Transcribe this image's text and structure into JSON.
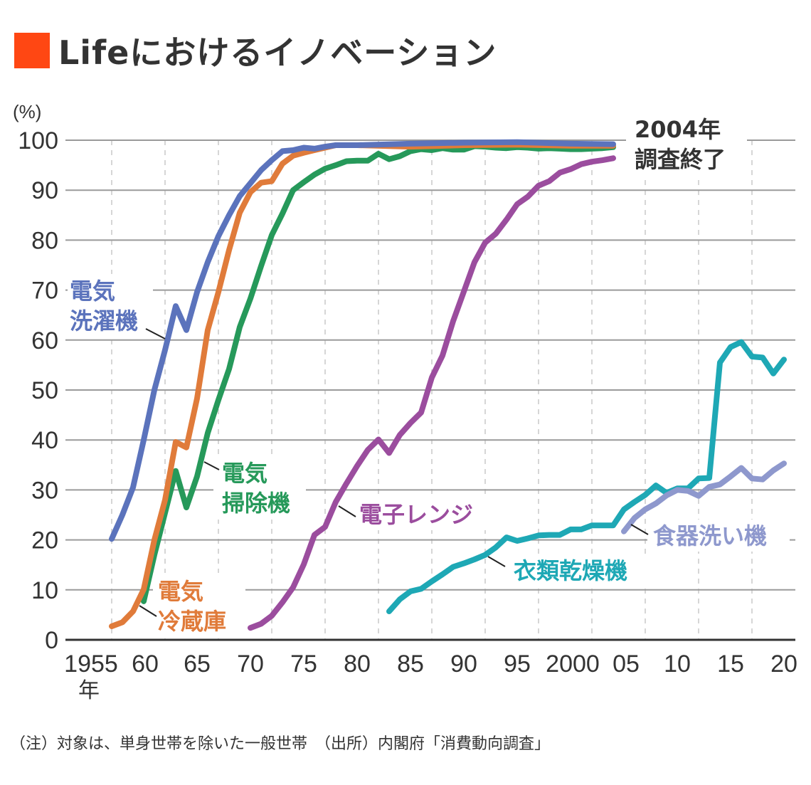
{
  "title": {
    "text": "Lifeにおけるイノベーション",
    "accent_color": "#FF4713"
  },
  "footnote": "（注）対象は、単身世帯を除いた一般世帯　（出所）内閣府「消費動向調査」",
  "chart_data": {
    "type": "line",
    "title": "Lifeにおけるイノベーション",
    "xlabel": "年",
    "ylabel": "(%)",
    "ylim": [
      0,
      100
    ],
    "xlim": [
      1955,
      2020
    ],
    "grid": true,
    "x_ticks": [
      1955,
      1960,
      1965,
      1970,
      1975,
      1980,
      1985,
      1990,
      1995,
      2000,
      2005,
      2010,
      2015,
      2020
    ],
    "x_tick_labels": [
      "1955",
      "60",
      "65",
      "70",
      "75",
      "80",
      "85",
      "90",
      "95",
      "2000",
      "05",
      "10",
      "15",
      "20"
    ],
    "x_unit_label": "年",
    "y_ticks": [
      0,
      10,
      20,
      30,
      40,
      50,
      60,
      70,
      80,
      90,
      100
    ],
    "y_tick_labels": [
      "0",
      "10",
      "20",
      "30",
      "40",
      "50",
      "60",
      "70",
      "80",
      "90",
      "100"
    ],
    "annotation": [
      "2004年",
      "調査終了"
    ],
    "series": [
      {
        "name": "電気洗濯機",
        "label_lines": [
          "電気",
          "洗濯機"
        ],
        "color": "#5B73BC",
        "x": [
          1957,
          1958,
          1959,
          1960,
          1961,
          1962,
          1963,
          1964,
          1965,
          1966,
          1967,
          1968,
          1969,
          1970,
          1971,
          1972,
          1973,
          1974,
          1975,
          1976,
          1977,
          1978,
          1980,
          1985,
          1990,
          1995,
          2000,
          2004
        ],
        "values": [
          20.2,
          25,
          30.5,
          40,
          50,
          58,
          66.8,
          62,
          69.6,
          75.6,
          80.8,
          85,
          88.8,
          91.4,
          94,
          96,
          97.8,
          98,
          98.5,
          98.3,
          98.7,
          99,
          99,
          99.3,
          99.5,
          99.6,
          99.3,
          99.2
        ]
      },
      {
        "name": "電気冷蔵庫",
        "label_lines": [
          "電気",
          "冷蔵庫"
        ],
        "color": "#E07B3A",
        "x": [
          1957,
          1958,
          1959,
          1960,
          1961,
          1962,
          1963,
          1964,
          1965,
          1966,
          1967,
          1968,
          1969,
          1970,
          1971,
          1972,
          1973,
          1974,
          1975,
          1976,
          1977,
          1978,
          1980,
          1985,
          1990,
          1995,
          2000,
          2004
        ],
        "values": [
          2.7,
          3.5,
          5.7,
          10.1,
          20,
          28,
          39.6,
          38.5,
          48.3,
          62,
          69.6,
          78,
          85.5,
          89.6,
          91.5,
          91.8,
          95.3,
          96.9,
          97.5,
          98,
          98.5,
          99,
          99,
          98.7,
          99,
          99.1,
          98.9,
          98.9
        ]
      },
      {
        "name": "電気掃除機",
        "label_lines": [
          "電気",
          "掃除機"
        ],
        "color": "#26995A",
        "x": [
          1960,
          1961,
          1962,
          1963,
          1964,
          1965,
          1966,
          1967,
          1968,
          1969,
          1970,
          1971,
          1972,
          1973,
          1974,
          1975,
          1976,
          1977,
          1978,
          1979,
          1980,
          1981,
          1982,
          1983,
          1984,
          1985,
          1986,
          1987,
          1988,
          1989,
          1990,
          1991,
          1992,
          1993,
          1994,
          1995,
          1996,
          1997,
          1998,
          1999,
          2000,
          2001,
          2002,
          2003,
          2004
        ],
        "values": [
          7.7,
          17,
          25.4,
          33.8,
          26.5,
          32.7,
          41.4,
          48,
          54.2,
          62.6,
          68.3,
          74.8,
          81,
          85.3,
          90,
          91.6,
          93.1,
          94.3,
          95,
          95.8,
          95.9,
          95.9,
          97.3,
          96.2,
          96.8,
          97.8,
          98.2,
          98,
          98.4,
          98.1,
          98.1,
          98.8,
          98.7,
          98.5,
          98.4,
          98.6,
          98.5,
          98.3,
          98.4,
          98.3,
          98.2,
          98.2,
          98.3,
          98.4,
          98.6
        ]
      },
      {
        "name": "電子レンジ",
        "label_lines": [
          "電子レンジ"
        ],
        "color": "#9B4D9E",
        "x": [
          1970,
          1971,
          1972,
          1973,
          1974,
          1975,
          1976,
          1977,
          1978,
          1979,
          1980,
          1981,
          1982,
          1983,
          1984,
          1985,
          1986,
          1987,
          1988,
          1989,
          1990,
          1991,
          1992,
          1993,
          1994,
          1995,
          1996,
          1997,
          1998,
          1999,
          2000,
          2001,
          2002,
          2003,
          2004
        ],
        "values": [
          2.4,
          3.2,
          4.8,
          7.5,
          10.5,
          15.1,
          21,
          22.6,
          27.6,
          31.3,
          34.8,
          38,
          40.1,
          37.4,
          41,
          43.4,
          45.5,
          52.5,
          56.9,
          63.8,
          69.7,
          75.6,
          79.5,
          81.3,
          84.1,
          87.2,
          88.7,
          90.9,
          91.8,
          93.5,
          94.2,
          95.2,
          95.7,
          96,
          96.4
        ]
      },
      {
        "name": "衣類乾燥機",
        "label_lines": [
          "衣類乾燥機"
        ],
        "color": "#1EA8B5",
        "x": [
          1983,
          1984,
          1985,
          1986,
          1987,
          1988,
          1989,
          1990,
          1991,
          1992,
          1993,
          1994,
          1995,
          1996,
          1997,
          1998,
          1999,
          2000,
          2001,
          2002,
          2003,
          2004,
          2005,
          2006,
          2007,
          2008,
          2009,
          2010,
          2011,
          2012,
          2013,
          2014,
          2015,
          2016,
          2017,
          2018,
          2019,
          2020
        ],
        "values": [
          5.7,
          8.1,
          9.7,
          10.2,
          11.7,
          13.1,
          14.6,
          15.3,
          16.1,
          17,
          18.5,
          20.5,
          19.8,
          20.3,
          20.9,
          21,
          21,
          22.1,
          22.1,
          22.9,
          22.9,
          22.9,
          26.1,
          27.6,
          29,
          30.9,
          29.4,
          30.3,
          30.3,
          32.3,
          32.4,
          55.5,
          58.6,
          59.6,
          56.7,
          56.5,
          53.3,
          56.1
        ]
      },
      {
        "name": "食器洗い機",
        "label_lines": [
          "食器洗い機"
        ],
        "color": "#8E98CD",
        "x": [
          2005,
          2006,
          2007,
          2008,
          2009,
          2010,
          2011,
          2012,
          2013,
          2014,
          2015,
          2016,
          2017,
          2018,
          2019,
          2020
        ],
        "values": [
          21.7,
          24.4,
          26.1,
          27.3,
          28.9,
          30,
          29.8,
          28.8,
          30.6,
          31.1,
          32.7,
          34.4,
          32.3,
          32.1,
          33.9,
          35.3
        ]
      }
    ]
  }
}
